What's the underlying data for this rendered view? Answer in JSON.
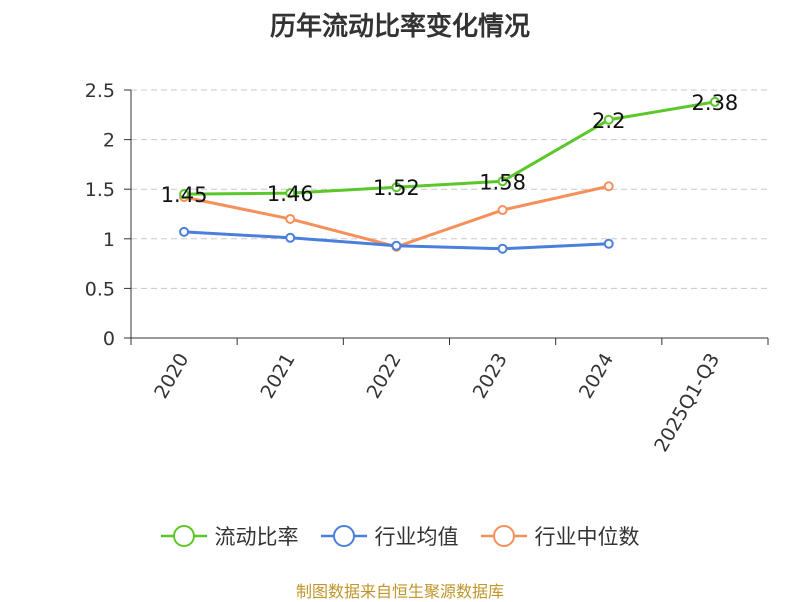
{
  "title": "历年流动比率变化情况",
  "source": "制图数据来自恒生聚源数据库",
  "chart_data": {
    "type": "line",
    "categories": [
      "2020",
      "2021",
      "2022",
      "2023",
      "2024",
      "2025Q1-Q3"
    ],
    "ylim": [
      0,
      2.5
    ],
    "yticks": [
      "0",
      "0.5",
      "1",
      "1.5",
      "2",
      "2.5"
    ],
    "grid": true,
    "legend_position": "bottom",
    "series": [
      {
        "name": "流动比率",
        "color": "#5bc72b",
        "values": [
          1.45,
          1.46,
          1.52,
          1.58,
          2.2,
          2.38
        ],
        "data_labels": [
          "1.45",
          "1.46",
          "1.52",
          "1.58",
          "2.2",
          "2.38"
        ]
      },
      {
        "name": "行业均值",
        "color": "#4a7fdc",
        "values": [
          1.07,
          1.01,
          0.93,
          0.9,
          0.95,
          null
        ]
      },
      {
        "name": "行业中位数",
        "color": "#f5905a",
        "values": [
          1.42,
          1.2,
          0.92,
          1.29,
          1.53,
          null
        ]
      }
    ]
  }
}
